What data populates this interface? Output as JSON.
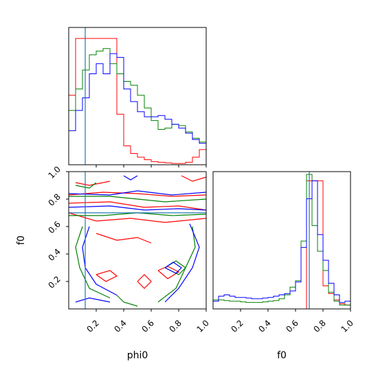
{
  "chart_data": {
    "type": "corner",
    "parameters": [
      "phi0",
      "f0"
    ],
    "xlabels": [
      "phi0",
      "f0"
    ],
    "ylabels": [
      "",
      "f0"
    ],
    "axis_ticks": {
      "phi0": {
        "range": [
          0,
          1.0
        ],
        "ticks": [
          0.2,
          0.4,
          0.6,
          0.8,
          1.0
        ],
        "labels": [
          "0.2",
          "0.4",
          "0.6",
          "0.8",
          "1.0"
        ]
      },
      "f0": {
        "range": [
          0,
          1.0
        ],
        "ticks": [
          0.2,
          0.4,
          0.6,
          0.8,
          1.0
        ],
        "labels": [
          "0.2",
          "0.4",
          "0.6",
          "0.8",
          "1.0"
        ]
      }
    },
    "truth_lines": {
      "phi0": 0.12,
      "f0": 0.7,
      "color": "#1f77b4"
    },
    "series": [
      {
        "color": "#ff0000",
        "hist_phi0": [
          0.55,
          1.0,
          1.0,
          1.0,
          1.0,
          1.0,
          1.0,
          0.4,
          0.15,
          0.09,
          0.06,
          0.04,
          0.025,
          0.02,
          0.015,
          0.01,
          0.01,
          0.02,
          0.06,
          0.12
        ],
        "hist_f0": [
          0.0,
          0.0,
          0.0,
          0.0,
          0.0,
          0.0,
          0.0,
          0.0,
          0.0,
          0.0,
          0.0,
          0.0,
          0.0,
          0.0,
          0.0,
          0.0,
          0.0,
          1.0,
          1.0,
          1.0,
          0.18,
          0.12,
          0.07,
          0.04,
          0.03
        ]
      },
      {
        "color": "#008000",
        "hist_phi0": [
          0.43,
          0.6,
          0.75,
          0.87,
          0.9,
          0.92,
          0.8,
          0.72,
          0.66,
          0.63,
          0.55,
          0.45,
          0.35,
          0.28,
          0.29,
          0.32,
          0.31,
          0.26,
          0.21,
          0.18
        ],
        "hist_f0": [
          0.07,
          0.07,
          0.065,
          0.06,
          0.06,
          0.055,
          0.05,
          0.05,
          0.05,
          0.055,
          0.06,
          0.065,
          0.08,
          0.11,
          0.17,
          0.22,
          0.53,
          1.05,
          0.65,
          0.45,
          0.3,
          0.13,
          0.06,
          0.03,
          0.03
        ]
      },
      {
        "color": "#0000ff",
        "hist_phi0": [
          0.27,
          0.43,
          0.53,
          0.72,
          0.8,
          0.72,
          0.88,
          0.85,
          0.6,
          0.5,
          0.42,
          0.38,
          0.38,
          0.39,
          0.36,
          0.32,
          0.29,
          0.25,
          0.2,
          0.17
        ],
        "hist_f0": [
          0.06,
          0.1,
          0.11,
          0.1,
          0.09,
          0.09,
          0.085,
          0.08,
          0.08,
          0.085,
          0.09,
          0.1,
          0.11,
          0.12,
          0.14,
          0.21,
          0.48,
          0.86,
          1.0,
          0.58,
          0.38,
          0.2,
          0.11,
          0.05,
          0.06
        ]
      }
    ]
  }
}
